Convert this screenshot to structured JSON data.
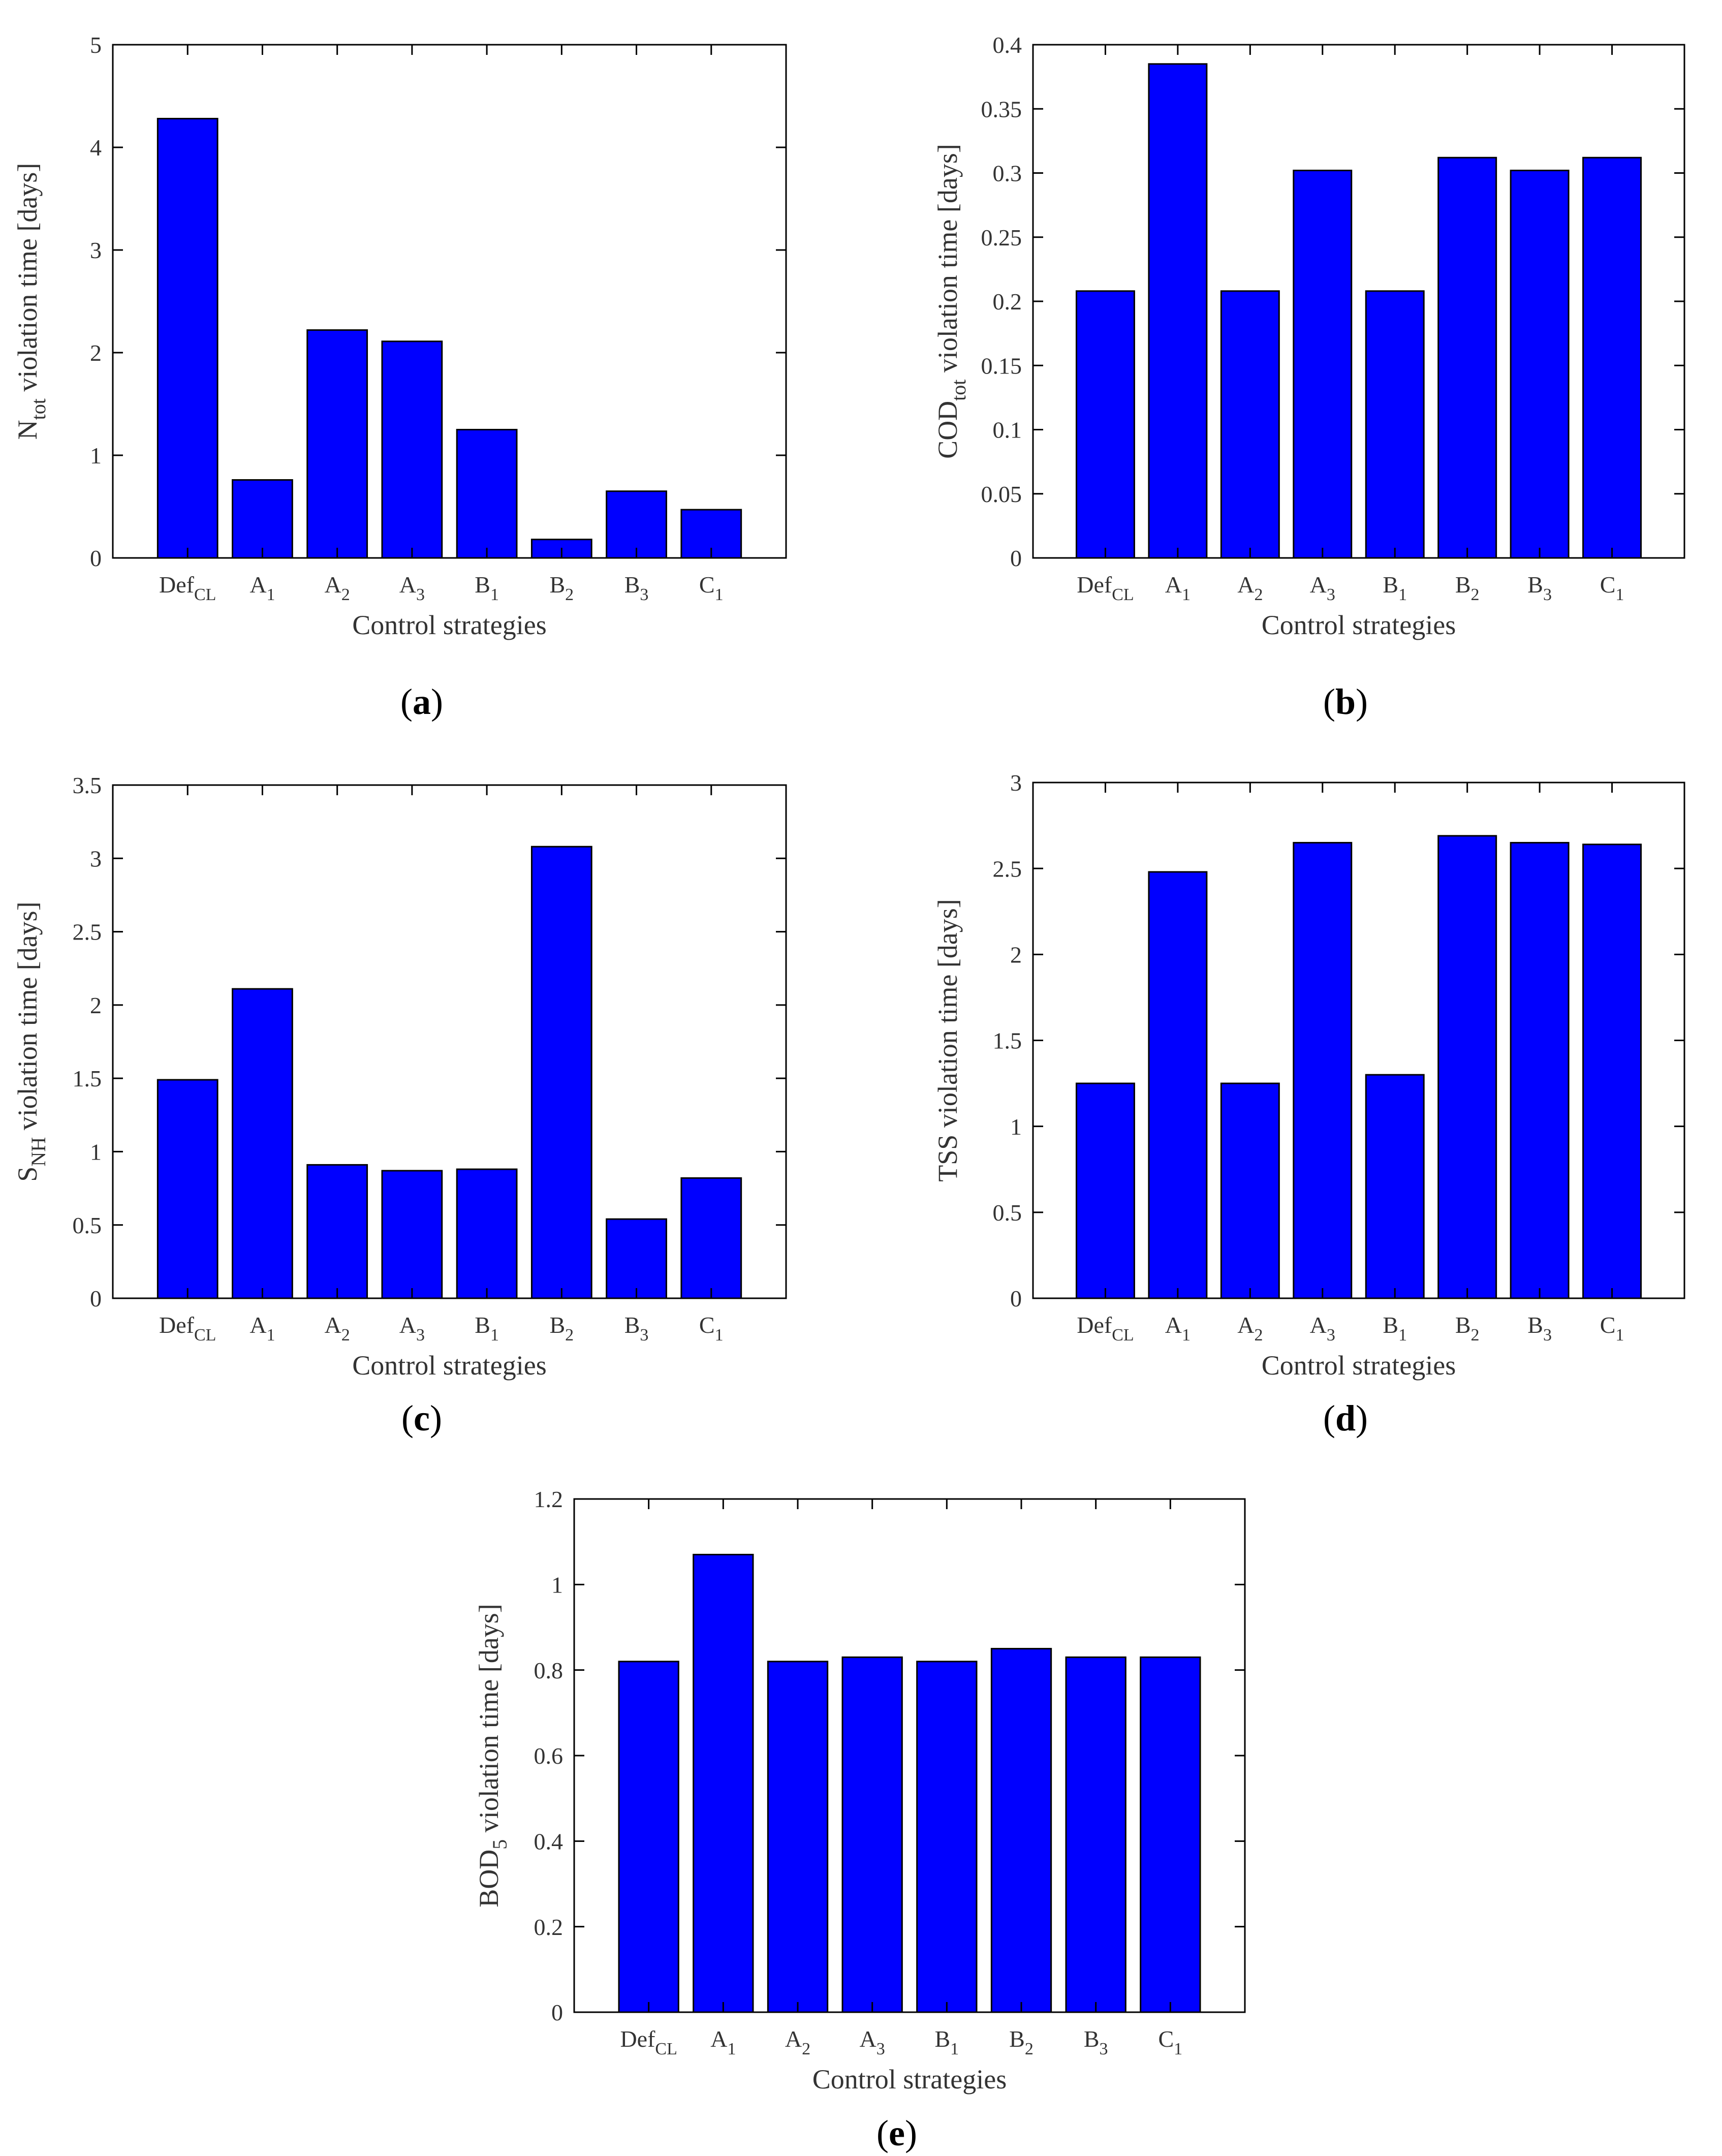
{
  "figure": {
    "bar_color": "#0000ff",
    "bar_edge_color": "#000000",
    "axis_color": "#000000",
    "text_color": "#333333"
  },
  "chart_data": [
    {
      "id": "a",
      "type": "bar",
      "panel_label": "a",
      "title": "",
      "categories": [
        {
          "base": "Def",
          "sub": "CL"
        },
        {
          "base": "A",
          "sub": "1"
        },
        {
          "base": "A",
          "sub": "2"
        },
        {
          "base": "A",
          "sub": "3"
        },
        {
          "base": "B",
          "sub": "1"
        },
        {
          "base": "B",
          "sub": "2"
        },
        {
          "base": "B",
          "sub": "3"
        },
        {
          "base": "C",
          "sub": "1"
        }
      ],
      "values": [
        4.28,
        0.76,
        2.22,
        2.11,
        1.25,
        0.18,
        0.65,
        0.47
      ],
      "xlabel": "Control strategies",
      "ylabel": {
        "base": "N",
        "sub": "tot",
        "rest": " violation time [days]"
      },
      "ylim": [
        0,
        5
      ],
      "yticks": [
        "0",
        "1",
        "2",
        "3",
        "4",
        "5"
      ],
      "grid": false,
      "box": true
    },
    {
      "id": "b",
      "type": "bar",
      "panel_label": "b",
      "title": "",
      "categories": [
        {
          "base": "Def",
          "sub": "CL"
        },
        {
          "base": "A",
          "sub": "1"
        },
        {
          "base": "A",
          "sub": "2"
        },
        {
          "base": "A",
          "sub": "3"
        },
        {
          "base": "B",
          "sub": "1"
        },
        {
          "base": "B",
          "sub": "2"
        },
        {
          "base": "B",
          "sub": "3"
        },
        {
          "base": "C",
          "sub": "1"
        }
      ],
      "values": [
        0.208,
        0.385,
        0.208,
        0.302,
        0.208,
        0.312,
        0.302,
        0.312
      ],
      "xlabel": "Control strategies",
      "ylabel": {
        "base": "COD",
        "sub": "tot",
        "rest": " violation time [days]"
      },
      "ylim": [
        0,
        0.4
      ],
      "yticks": [
        "0",
        "0.05",
        "0.1",
        "0.15",
        "0.2",
        "0.25",
        "0.3",
        "0.35",
        "0.4"
      ],
      "grid": false,
      "box": true
    },
    {
      "id": "c",
      "type": "bar",
      "panel_label": "c",
      "title": "",
      "categories": [
        {
          "base": "Def",
          "sub": "CL"
        },
        {
          "base": "A",
          "sub": "1"
        },
        {
          "base": "A",
          "sub": "2"
        },
        {
          "base": "A",
          "sub": "3"
        },
        {
          "base": "B",
          "sub": "1"
        },
        {
          "base": "B",
          "sub": "2"
        },
        {
          "base": "B",
          "sub": "3"
        },
        {
          "base": "C",
          "sub": "1"
        }
      ],
      "values": [
        1.49,
        2.11,
        0.91,
        0.87,
        0.88,
        3.08,
        0.54,
        0.82
      ],
      "xlabel": "Control strategies",
      "ylabel": {
        "base": "S",
        "sub": "NH",
        "rest": " violation time [days]"
      },
      "ylim": [
        0,
        3.5
      ],
      "yticks": [
        "0",
        "0.5",
        "1",
        "1.5",
        "2",
        "2.5",
        "3",
        "3.5"
      ],
      "grid": false,
      "box": true
    },
    {
      "id": "d",
      "type": "bar",
      "panel_label": "d",
      "title": "",
      "categories": [
        {
          "base": "Def",
          "sub": "CL"
        },
        {
          "base": "A",
          "sub": "1"
        },
        {
          "base": "A",
          "sub": "2"
        },
        {
          "base": "A",
          "sub": "3"
        },
        {
          "base": "B",
          "sub": "1"
        },
        {
          "base": "B",
          "sub": "2"
        },
        {
          "base": "B",
          "sub": "3"
        },
        {
          "base": "C",
          "sub": "1"
        }
      ],
      "values": [
        1.25,
        2.48,
        1.25,
        2.65,
        1.3,
        2.69,
        2.65,
        2.64
      ],
      "xlabel": "Control strategies",
      "ylabel": {
        "base": "TSS violation time [days]",
        "sub": "",
        "rest": ""
      },
      "ylim": [
        0,
        3
      ],
      "yticks": [
        "0",
        "0.5",
        "1",
        "1.5",
        "2",
        "2.5",
        "3"
      ],
      "grid": false,
      "box": true
    },
    {
      "id": "e",
      "type": "bar",
      "panel_label": "e",
      "title": "",
      "categories": [
        {
          "base": "Def",
          "sub": "CL"
        },
        {
          "base": "A",
          "sub": "1"
        },
        {
          "base": "A",
          "sub": "2"
        },
        {
          "base": "A",
          "sub": "3"
        },
        {
          "base": "B",
          "sub": "1"
        },
        {
          "base": "B",
          "sub": "2"
        },
        {
          "base": "B",
          "sub": "3"
        },
        {
          "base": "C",
          "sub": "1"
        }
      ],
      "values": [
        0.82,
        1.07,
        0.82,
        0.83,
        0.82,
        0.85,
        0.83,
        0.83
      ],
      "xlabel": "Control strategies",
      "ylabel": {
        "base": "BOD",
        "sub": "5",
        "rest": " violation time [days]"
      },
      "ylim": [
        0,
        1.2
      ],
      "yticks": [
        "0",
        "0.2",
        "0.4",
        "0.6",
        "0.8",
        "1",
        "1.2"
      ],
      "grid": false,
      "box": true
    }
  ]
}
